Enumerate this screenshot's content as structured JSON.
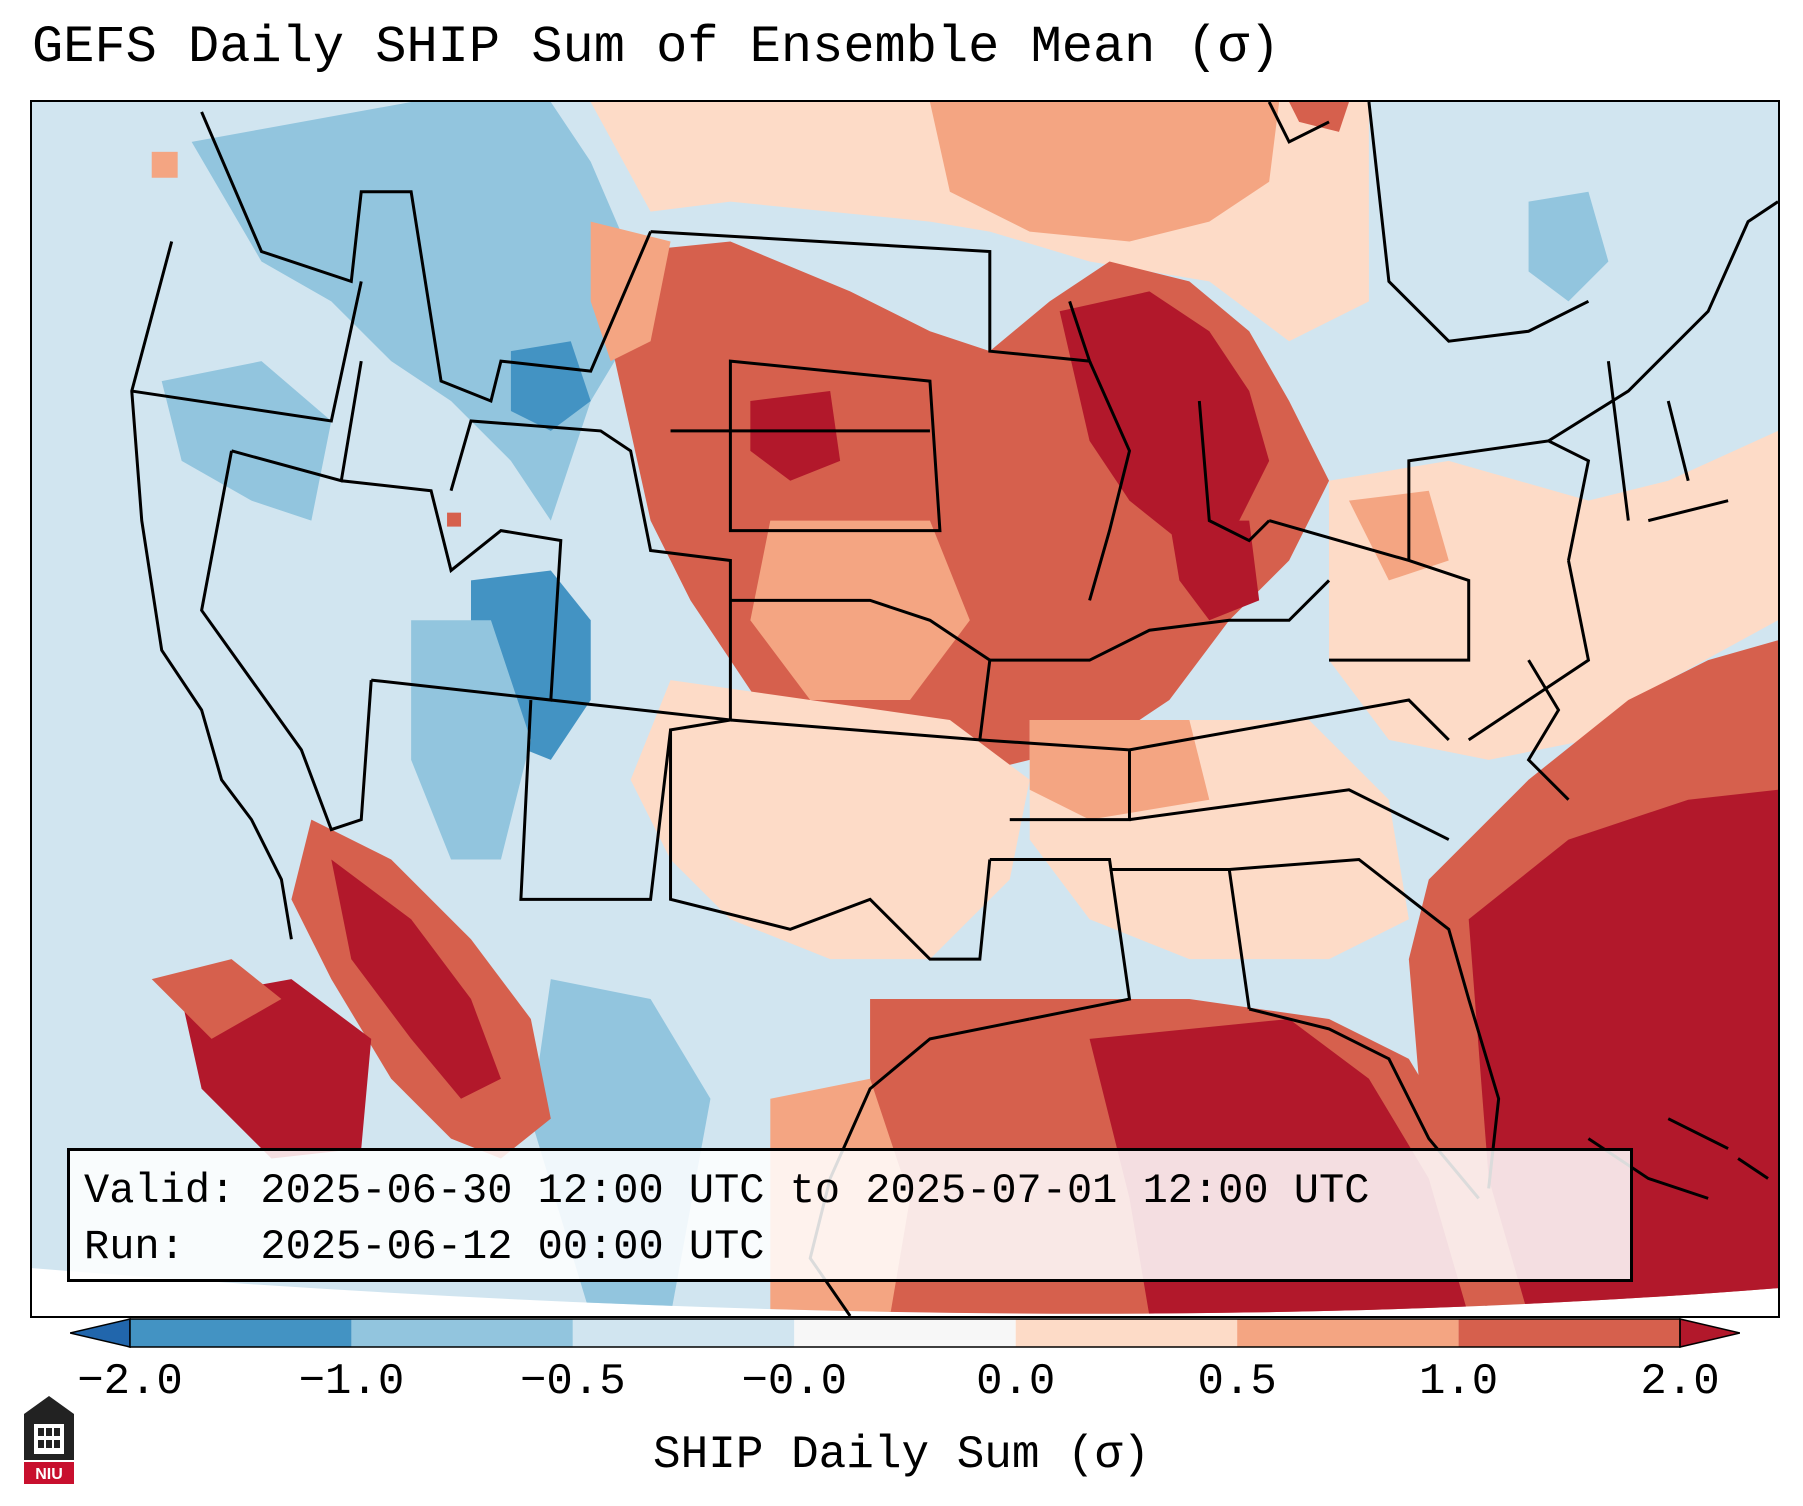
{
  "title": "GEFS Daily SHIP Sum of Ensemble Mean (σ)",
  "info": {
    "valid": "Valid: 2025-06-30 12:00 UTC to 2025-07-01 12:00 UTC",
    "run": "Run:   2025-06-12 00:00 UTC"
  },
  "colorbar": {
    "label": "SHIP Daily Sum (σ)",
    "ticks": [
      "−2.0",
      "−1.0",
      "−0.5",
      "−0.0",
      "0.0",
      "0.5",
      "1.0",
      "2.0"
    ],
    "colors": [
      "#4393c3",
      "#92c5de",
      "#d1e5f0",
      "#f7f7f7",
      "#fddbc7",
      "#f4a582",
      "#d6604d",
      "#b2182b"
    ],
    "under_color": "#2166ac",
    "over_color": "#b2182b"
  },
  "logo": {
    "text": "NIU",
    "color": "#c8102e"
  }
}
